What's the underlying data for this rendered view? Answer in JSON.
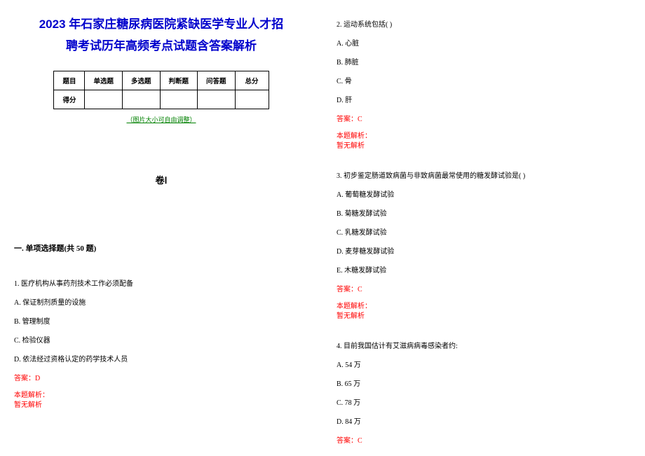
{
  "title_line1": "2023 年石家庄糖尿病医院紧缺医学专业人才招",
  "title_line2": "聘考试历年高频考点试题含答案解析",
  "table": {
    "r1": [
      "题目",
      "单选题",
      "多选题",
      "判断题",
      "问答题",
      "总分"
    ],
    "r2_label": "得分"
  },
  "img_note": "（图片大小可自由调整）",
  "paper_label": "卷Ⅰ",
  "section1": "一. 单项选择题(共 50 题)",
  "q1": {
    "stem": "1. 医疗机构从事药剂技术工作必须配备",
    "a": "A. 保证制剂质量的设施",
    "b": "B. 管理制度",
    "c": "C. 检验仪器",
    "d": "D. 依法经过资格认定的药学技术人员",
    "ans": "答案：D",
    "ana_label": "本题解析：",
    "ana_content": "暂无解析"
  },
  "q2": {
    "stem": "2. 运动系统包括(   )",
    "a": "A. 心脏",
    "b": "B. 肺脏",
    "c": "C. 骨",
    "d": "D. 肝",
    "ans": "答案：C",
    "ana_label": "本题解析：",
    "ana_content": "暂无解析"
  },
  "q3": {
    "stem": "3. 初步鉴定肠道致病菌与非致病菌最常使用的糖发酵试验是(    )",
    "a": "A. 葡萄糖发酵试验",
    "b": "B. 菊糖发酵试验",
    "c": "C. 乳糖发酵试验",
    "d": "D. 麦芽糖发酵试验",
    "e": "E. 木糖发酵试验",
    "ans": "答案：C",
    "ana_label": "本题解析：",
    "ana_content": "暂无解析"
  },
  "q4": {
    "stem": "4. 目前我国估计有艾滋病病毒感染者约:",
    "a": "A. 54 万",
    "b": "B. 65 万",
    "c": "C. 78 万",
    "d": "D. 84 万",
    "ans": "答案：C"
  },
  "colors": {
    "title": "#0000cc",
    "answer": "#ff0000",
    "note": "#008000",
    "text": "#000000",
    "bg": "#ffffff"
  }
}
